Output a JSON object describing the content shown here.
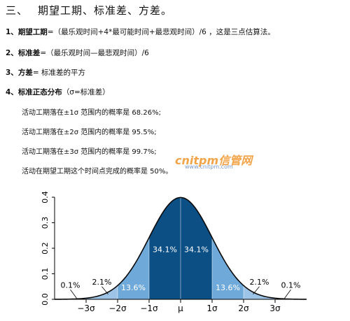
{
  "heading": {
    "number": "三、",
    "title": "期望工期、标准差、方差。"
  },
  "items": [
    {
      "num": "1、",
      "term": "期望工期",
      "text": "=（最乐观时间+4*最可能时间+最悲观时间）/6 ，这是三点估算法。"
    },
    {
      "num": "2、",
      "term": "标准差",
      "text": "=（最乐观时间—最悲观时间）/6"
    },
    {
      "num": "3、",
      "term": "方差",
      "text": "= 标准差的平方"
    },
    {
      "num": "4、",
      "term": "标准正态分布",
      "text": "（σ=标准差）"
    }
  ],
  "facts": [
    "活动工期落在±1σ 范围内的概率是 68.26%;",
    "活动工期落在±2σ 范围内的概率是 95.5%;",
    "活动工期落在±3σ 范围内的概率是 99.7%;",
    "活动在期望工期这个时间点完成的概率是 50%。"
  ],
  "watermark": {
    "logo": "cnitpm信管网",
    "url": "www.cnitpm.com"
  },
  "colors": {
    "dark": "#0b4f85",
    "mid": "#2f7fc1",
    "light": "#6fa9d9",
    "lighter": "#9dc3e6"
  },
  "chart_data": {
    "type": "area",
    "ytick_labels": [
      "0.0",
      "0.1",
      "0.2",
      "0.3",
      "0.4"
    ],
    "ylim": [
      0,
      0.4
    ],
    "xlim": [
      -4,
      4
    ],
    "xtick_labels": [
      "−3σ",
      "−2σ",
      "−1σ",
      "μ",
      "1σ",
      "2σ",
      "3σ"
    ],
    "xtick_values": [
      -3,
      -2,
      -1,
      0,
      1,
      2,
      3
    ],
    "regions": [
      {
        "label": "0.1%",
        "from": -4,
        "to": -3,
        "inside": false
      },
      {
        "label": "2.1%",
        "from": -3,
        "to": -2,
        "inside": false
      },
      {
        "label": "13.6%",
        "from": -2,
        "to": -1,
        "inside": true
      },
      {
        "label": "34.1%",
        "from": -1,
        "to": 0,
        "inside": true
      },
      {
        "label": "34.1%",
        "from": 0,
        "to": 1,
        "inside": true
      },
      {
        "label": "13.6%",
        "from": 1,
        "to": 2,
        "inside": true
      },
      {
        "label": "2.1%",
        "from": 2,
        "to": 3,
        "inside": false
      },
      {
        "label": "0.1%",
        "from": 3,
        "to": 4,
        "inside": false
      }
    ]
  }
}
